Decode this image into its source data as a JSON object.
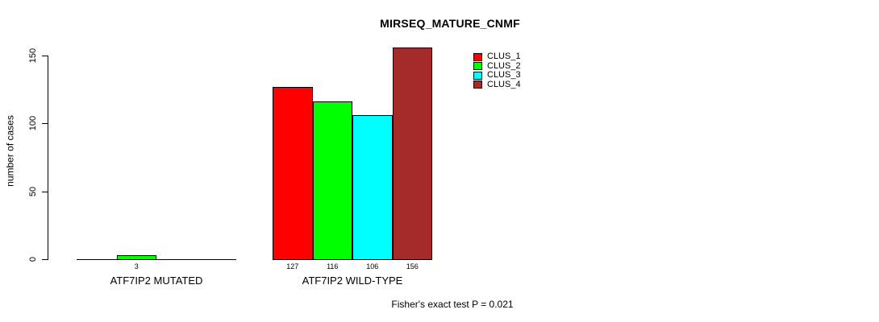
{
  "title": "MIRSEQ_MATURE_CNMF",
  "y_axis": {
    "label": "number of cases"
  },
  "footer": "Fisher's exact test P = 0.021",
  "legend": {
    "items": [
      {
        "label": "CLUS_1",
        "color": "#FF0000"
      },
      {
        "label": "CLUS_2",
        "color": "#00FF00"
      },
      {
        "label": "CLUS_3",
        "color": "#00FFFF"
      },
      {
        "label": "CLUS_4",
        "color": "#A52A2A"
      }
    ]
  },
  "chart_data": {
    "type": "bar",
    "title": "MIRSEQ_MATURE_CNMF",
    "ylabel": "number of cases",
    "xlabel": "",
    "ylim": [
      0,
      156
    ],
    "yticks": [
      0,
      50,
      100,
      150
    ],
    "grid": false,
    "legend_position": "upper-right-inside",
    "series": [
      "CLUS_1",
      "CLUS_2",
      "CLUS_3",
      "CLUS_4"
    ],
    "colors": [
      "#FF0000",
      "#00FF00",
      "#00FFFF",
      "#A52A2A"
    ],
    "groups": [
      {
        "label": "ATF7IP2 MUTATED",
        "values": [
          0,
          3,
          0,
          0
        ],
        "bar_labels": [
          "",
          "3",
          "",
          ""
        ]
      },
      {
        "label": "ATF7IP2 WILD-TYPE",
        "values": [
          127,
          116,
          106,
          156
        ],
        "bar_labels": [
          "127",
          "116",
          "106",
          "156"
        ]
      }
    ],
    "annotation": "Fisher's exact test P = 0.021"
  }
}
